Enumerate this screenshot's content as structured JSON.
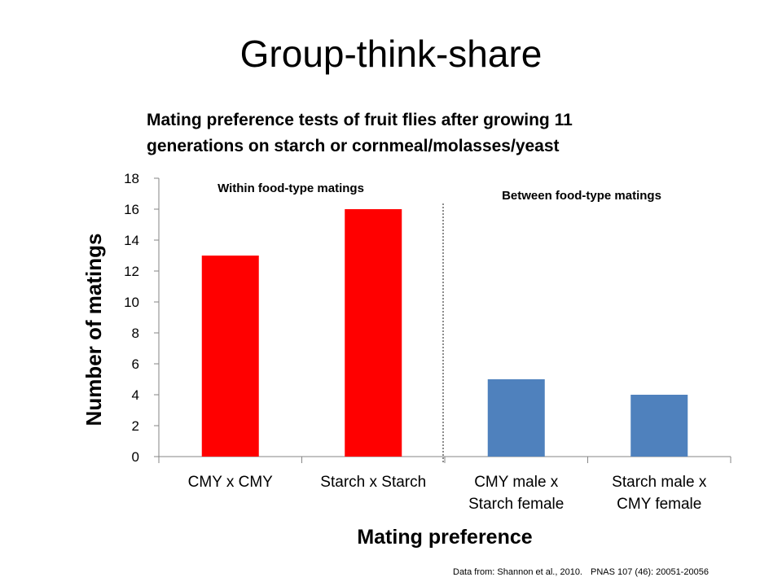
{
  "slide": {
    "title": "Group-think-share"
  },
  "footer": {
    "source": "Data from: Shannon et al., 2010.",
    "citation": "PNAS 107 (46): 20051-20056"
  },
  "chart_data": {
    "type": "bar",
    "title_lines": [
      "Mating preference tests of fruit flies after growing 11",
      "generations on starch or cornmeal/molasses/yeast"
    ],
    "categories": [
      [
        "CMY x CMY"
      ],
      [
        "Starch x Starch"
      ],
      [
        "CMY male x",
        "Starch female"
      ],
      [
        "Starch male x",
        "CMY female"
      ]
    ],
    "values": [
      13,
      16,
      5,
      4
    ],
    "bar_colors": [
      "#ff0000",
      "#ff0000",
      "#4f81bd",
      "#4f81bd"
    ],
    "xlabel": "Mating preference",
    "ylabel": "Number of matings",
    "ylim": [
      0,
      18
    ],
    "yticks": [
      0,
      2,
      4,
      6,
      8,
      10,
      12,
      14,
      16,
      18
    ],
    "grid": false,
    "annotations": [
      {
        "text": "Within food-type matings",
        "group": "within"
      },
      {
        "text": "Between food-type matings",
        "group": "between"
      }
    ],
    "divider": {
      "style": "dotted",
      "between_categories": [
        1,
        2
      ]
    }
  }
}
